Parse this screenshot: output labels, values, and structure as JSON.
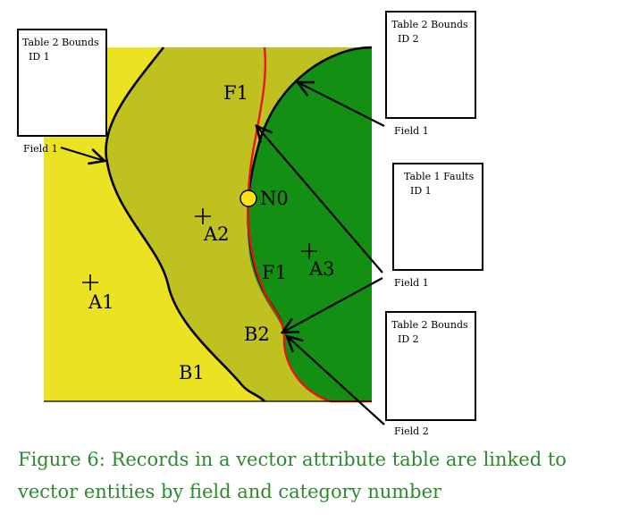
{
  "diagram": {
    "colors": {
      "region_a1": "#ebe223",
      "region_a2": "#bfc120",
      "region_a3": "#139013",
      "boundary": "#000000",
      "fault": "#e8140c",
      "node": "#ffe11a",
      "caption": "#2c8a2c"
    },
    "region_labels": {
      "a1": "A1",
      "a2": "A2",
      "a3": "A3",
      "b1": "B1",
      "b2": "B2",
      "f1_top": "F1",
      "f1_mid": "F1",
      "n0": "N0"
    },
    "tables": [
      {
        "line1": "Table 2 Bounds",
        "line2": "ID 1",
        "field": "Field 1"
      },
      {
        "line1": "Table 2 Bounds",
        "line2": "ID 2",
        "field": "Field 1"
      },
      {
        "line1": "Table 1 Faults",
        "line2": "ID 1",
        "field": "Field 1"
      },
      {
        "line1": "Table 2 Bounds",
        "line2": "ID 2",
        "field": "Field 2"
      }
    ]
  },
  "caption": {
    "text": "Figure 6: Records in a vector attribute table are linked to vector entities by field and category number"
  }
}
